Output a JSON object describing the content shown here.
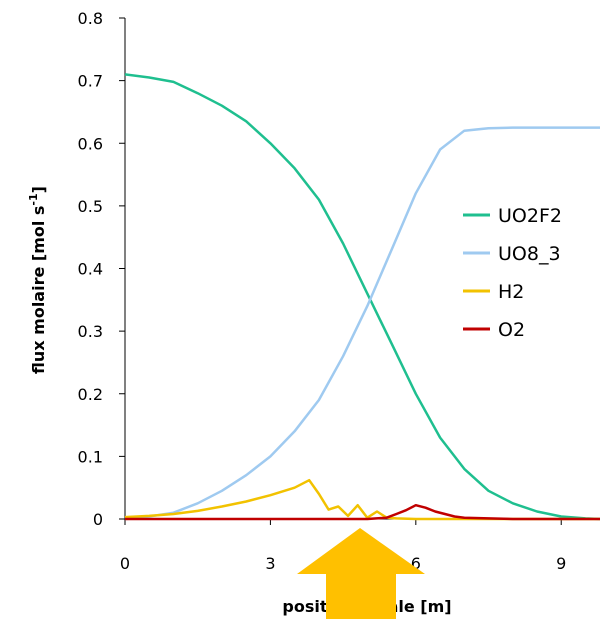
{
  "chart_data": {
    "type": "line",
    "xlabel": "position axiale [m]",
    "ylabel": "flux molaire [mol s",
    "ylabel_superscript": "-1",
    "ylabel_close": "]",
    "xlim": [
      0,
      9.8
    ],
    "ylim": [
      0,
      0.8
    ],
    "x_ticks": [
      0,
      3,
      6,
      9
    ],
    "y_ticks": [
      0,
      0.1,
      0.2,
      0.3,
      0.4,
      0.5,
      0.6,
      0.7,
      0.8
    ],
    "x_tick_labels": [
      "0",
      "3",
      "6",
      "9"
    ],
    "y_tick_labels": [
      "0",
      "0.1",
      "0.2",
      "0.3",
      "0.4",
      "0.5",
      "0.6",
      "0.7",
      "0.8"
    ],
    "grid": false,
    "legend_position": "right",
    "annotation": "yellow-arrow-pointing-up-at-x-4.8",
    "series": [
      {
        "name": "UO2F2",
        "color": "#1fbf8f",
        "x": [
          0,
          0.5,
          1.0,
          1.5,
          2.0,
          2.5,
          3.0,
          3.5,
          4.0,
          4.5,
          5.0,
          5.5,
          6.0,
          6.5,
          7.0,
          7.5,
          8.0,
          8.5,
          9.0,
          9.5,
          9.8
        ],
        "y": [
          0.71,
          0.705,
          0.698,
          0.68,
          0.66,
          0.635,
          0.6,
          0.56,
          0.51,
          0.44,
          0.36,
          0.28,
          0.2,
          0.13,
          0.08,
          0.045,
          0.025,
          0.012,
          0.004,
          0.001,
          0.0
        ]
      },
      {
        "name": "UO8_3",
        "color": "#9fcaf0",
        "x": [
          0,
          0.5,
          1.0,
          1.5,
          2.0,
          2.5,
          3.0,
          3.5,
          4.0,
          4.5,
          5.0,
          5.5,
          6.0,
          6.5,
          7.0,
          7.5,
          8.0,
          8.5,
          9.0,
          9.5,
          9.8
        ],
        "y": [
          0.0,
          0.004,
          0.01,
          0.025,
          0.045,
          0.07,
          0.1,
          0.14,
          0.19,
          0.26,
          0.34,
          0.43,
          0.52,
          0.59,
          0.62,
          0.624,
          0.625,
          0.625,
          0.625,
          0.625,
          0.625
        ]
      },
      {
        "name": "H2",
        "color": "#f2c200",
        "x": [
          0,
          0.5,
          1.0,
          1.5,
          2.0,
          2.5,
          3.0,
          3.5,
          3.8,
          4.0,
          4.2,
          4.4,
          4.6,
          4.8,
          5.0,
          5.2,
          5.4,
          5.6,
          6.0,
          7.0,
          8.0,
          9.0,
          9.8
        ],
        "y": [
          0.003,
          0.005,
          0.008,
          0.013,
          0.02,
          0.028,
          0.038,
          0.05,
          0.062,
          0.04,
          0.015,
          0.02,
          0.005,
          0.022,
          0.002,
          0.012,
          0.002,
          0.001,
          0.0,
          0.0,
          0.0,
          0.0,
          0.0
        ]
      },
      {
        "name": "O2",
        "color": "#c00000",
        "x": [
          0,
          1.0,
          2.0,
          3.0,
          4.0,
          5.0,
          5.4,
          5.6,
          5.8,
          6.0,
          6.2,
          6.4,
          6.6,
          6.8,
          7.0,
          7.5,
          8.0,
          9.0,
          9.8
        ],
        "y": [
          0.0,
          0.0,
          0.0,
          0.0,
          0.0,
          0.0,
          0.002,
          0.008,
          0.014,
          0.022,
          0.018,
          0.012,
          0.008,
          0.004,
          0.002,
          0.001,
          0.0,
          0.0,
          0.0
        ]
      }
    ]
  }
}
